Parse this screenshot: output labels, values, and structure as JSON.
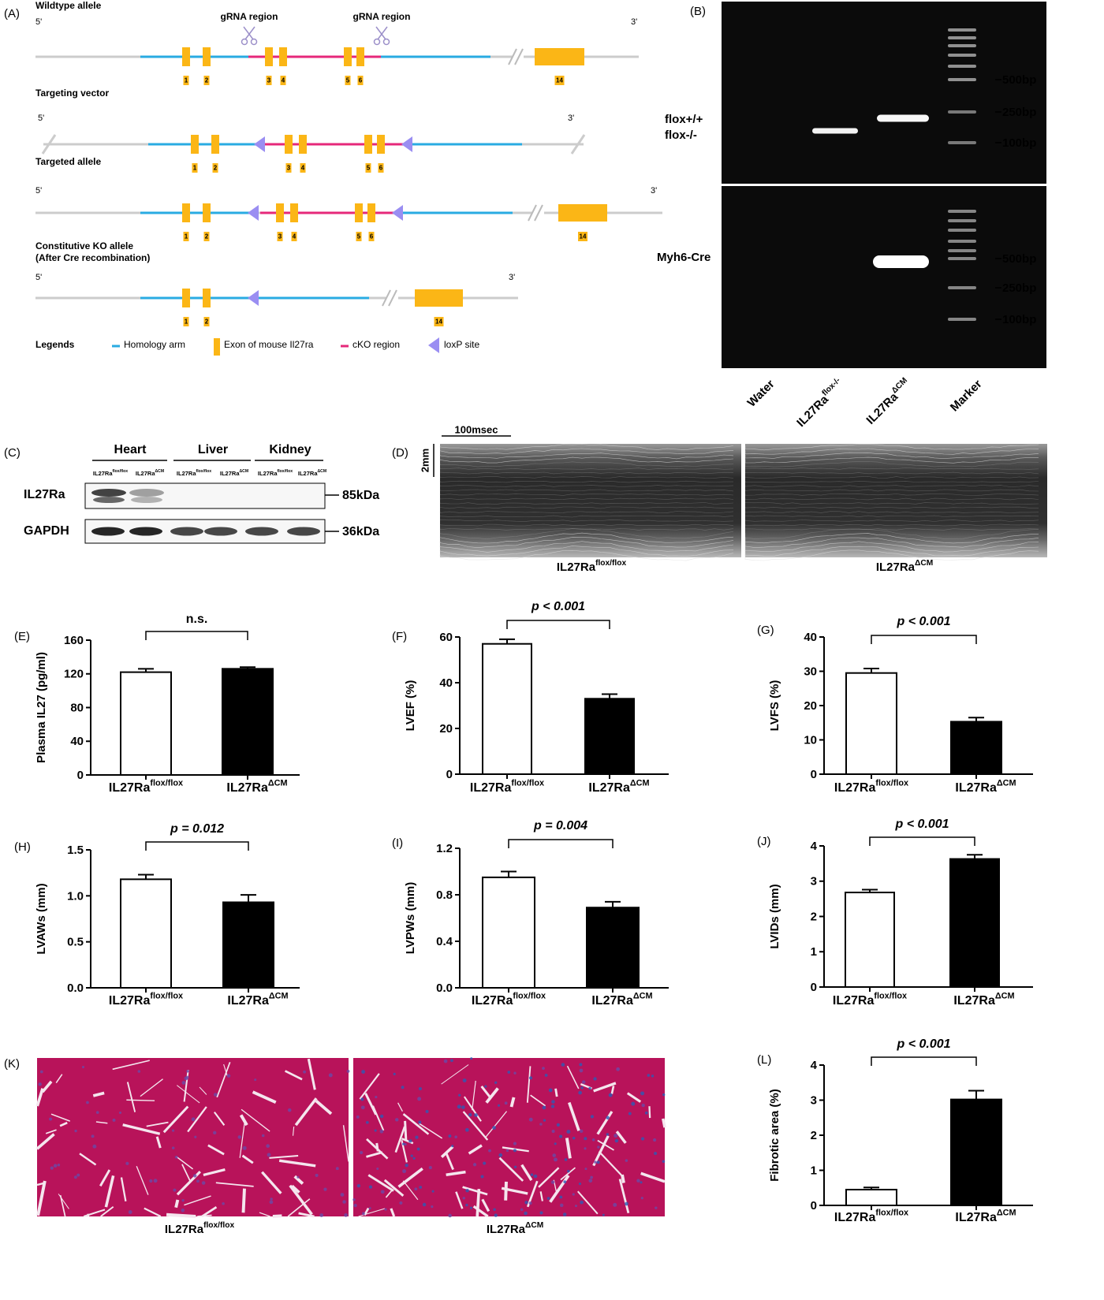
{
  "diagram": {
    "panel": "(A)",
    "rows": [
      {
        "title": "Wildtype allele",
        "five": "5'",
        "three": "3'",
        "exons": [
          "1",
          "2",
          "3",
          "4",
          "5",
          "6",
          "14"
        ]
      },
      {
        "title": "Targeting vector",
        "five": "5'",
        "three": "3'",
        "exons": [
          "1",
          "2",
          "3",
          "4",
          "5",
          "6"
        ]
      },
      {
        "title": "Targeted allele",
        "five": "5'",
        "three": "3'",
        "exons": [
          "1",
          "2",
          "3",
          "4",
          "5",
          "6",
          "14"
        ]
      },
      {
        "title": "Constitutive KO allele",
        "subtitle": "(After Cre recombination)",
        "five": "5'",
        "three": "3'",
        "exons": [
          "1",
          "2",
          "14"
        ]
      }
    ],
    "grna": [
      "gRNA region",
      "gRNA region"
    ],
    "legend": {
      "title": "Legends",
      "items": [
        "Homology arm",
        "Exon of mouse Il27ra",
        "cKO region",
        "loxP site"
      ]
    }
  },
  "gel": {
    "panel": "(B)",
    "top_labels": [
      "flox+/+",
      "flox-/-"
    ],
    "bottom_label": "Myh6-Cre",
    "top_sizes": [
      "500bp",
      "250bp",
      "100bp"
    ],
    "bottom_sizes": [
      "500bp",
      "250bp",
      "100bp"
    ],
    "lanes": [
      {
        "name": "Water"
      },
      {
        "name": "IL27Ra",
        "sup": "flox-/-"
      },
      {
        "name": "IL27Ra",
        "sup": "ΔCM"
      },
      {
        "name": "Marker"
      }
    ]
  },
  "western": {
    "panel": "(C)",
    "tissues": [
      "Heart",
      "Liver",
      "Kidney"
    ],
    "lanes": [
      {
        "name": "IL27Ra",
        "sup": "flox/flox"
      },
      {
        "name": "IL27Ra",
        "sup": "ΔCM"
      },
      {
        "name": "IL27Ra",
        "sup": "flox/flox"
      },
      {
        "name": "IL27Ra",
        "sup": "ΔCM"
      },
      {
        "name": "IL27Ra",
        "sup": "flox/flox"
      },
      {
        "name": "IL27Ra",
        "sup": "ΔCM"
      }
    ],
    "proteins": [
      "IL27Ra",
      "GAPDH"
    ],
    "sizes": [
      "85kDa",
      "36kDa"
    ]
  },
  "echo": {
    "panel": "(D)",
    "time_scale": "100msec",
    "depth_scale": "2mm",
    "groups": [
      {
        "name": "IL27Ra",
        "sup": "flox/flox"
      },
      {
        "name": "IL27Ra",
        "sup": "ΔCM"
      }
    ]
  },
  "histology": {
    "panel": "(K)",
    "groups": [
      {
        "name": "IL27Ra",
        "sup": "flox/flox"
      },
      {
        "name": "IL27Ra",
        "sup": "ΔCM"
      }
    ]
  },
  "chart_data": [
    {
      "type": "bar",
      "panel": "(E)",
      "ylabel": "Plasma IL27 (pg/ml)",
      "categories": [
        "IL27Ra",
        "IL27Ra"
      ],
      "category_sup": [
        "flox/flox",
        "ΔCM"
      ],
      "values": [
        122,
        126
      ],
      "errors": [
        4,
        2
      ],
      "colors": [
        "#ffffff",
        "#000000"
      ],
      "ylim": [
        0,
        160
      ],
      "yticks": [
        0,
        40,
        80,
        120,
        160
      ],
      "annotation": "n.s."
    },
    {
      "type": "bar",
      "panel": "(F)",
      "ylabel": "LVEF (%)",
      "categories": [
        "IL27Ra",
        "IL27Ra"
      ],
      "category_sup": [
        "flox/flox",
        "ΔCM"
      ],
      "values": [
        57,
        33
      ],
      "errors": [
        2,
        2
      ],
      "colors": [
        "#ffffff",
        "#000000"
      ],
      "ylim": [
        0,
        60
      ],
      "yticks": [
        0,
        20,
        40,
        60
      ],
      "annotation": "p < 0.001"
    },
    {
      "type": "bar",
      "panel": "(G)",
      "ylabel": "LVFS (%)",
      "categories": [
        "IL27Ra",
        "IL27Ra"
      ],
      "category_sup": [
        "flox/flox",
        "ΔCM"
      ],
      "values": [
        29.5,
        15.3
      ],
      "errors": [
        1.3,
        1.2
      ],
      "colors": [
        "#ffffff",
        "#000000"
      ],
      "ylim": [
        0,
        40
      ],
      "yticks": [
        0,
        10,
        20,
        30,
        40
      ],
      "annotation": "p < 0.001"
    },
    {
      "type": "bar",
      "panel": "(H)",
      "ylabel": "LVAWs (mm)",
      "categories": [
        "IL27Ra",
        "IL27Ra"
      ],
      "category_sup": [
        "flox/flox",
        "ΔCM"
      ],
      "values": [
        1.18,
        0.93
      ],
      "errors": [
        0.05,
        0.08
      ],
      "colors": [
        "#ffffff",
        "#000000"
      ],
      "ylim": [
        0,
        1.5
      ],
      "yticks": [
        {
          "value": 0,
          "label": "0.0"
        },
        {
          "value": 0.5,
          "label": "0.5"
        },
        {
          "value": 1,
          "label": "1.0"
        },
        {
          "value": 1.5,
          "label": "1.5"
        }
      ],
      "annotation": "p = 0.012"
    },
    {
      "type": "bar",
      "panel": "(I)",
      "ylabel": "LVPWs (mm)",
      "categories": [
        "IL27Ra",
        "IL27Ra"
      ],
      "category_sup": [
        "flox/flox",
        "ΔCM"
      ],
      "values": [
        0.95,
        0.69
      ],
      "errors": [
        0.05,
        0.05
      ],
      "colors": [
        "#ffffff",
        "#000000"
      ],
      "ylim": [
        0,
        1.2
      ],
      "yticks": [
        {
          "value": 0,
          "label": "0.0"
        },
        {
          "value": 0.4,
          "label": "0.4"
        },
        {
          "value": 0.8,
          "label": "0.8"
        },
        {
          "value": 1.2,
          "label": "1.2"
        }
      ],
      "annotation": "p = 0.004"
    },
    {
      "type": "bar",
      "panel": "(J)",
      "ylabel": "LVIDs (mm)",
      "categories": [
        "IL27Ra",
        "IL27Ra"
      ],
      "category_sup": [
        "flox/flox",
        "ΔCM"
      ],
      "values": [
        2.68,
        3.63
      ],
      "errors": [
        0.08,
        0.12
      ],
      "colors": [
        "#ffffff",
        "#000000"
      ],
      "ylim": [
        0,
        4
      ],
      "yticks": [
        0,
        1,
        2,
        3,
        4
      ],
      "annotation": "p < 0.001"
    },
    {
      "type": "bar",
      "panel": "(L)",
      "ylabel": "Fibrotic area (%)",
      "categories": [
        "IL27Ra",
        "IL27Ra"
      ],
      "category_sup": [
        "flox/flox",
        "ΔCM"
      ],
      "values": [
        0.45,
        3.02
      ],
      "errors": [
        0.06,
        0.25
      ],
      "colors": [
        "#ffffff",
        "#000000"
      ],
      "ylim": [
        0,
        4
      ],
      "yticks": [
        0,
        1,
        2,
        3,
        4
      ],
      "annotation": "p < 0.001"
    }
  ]
}
